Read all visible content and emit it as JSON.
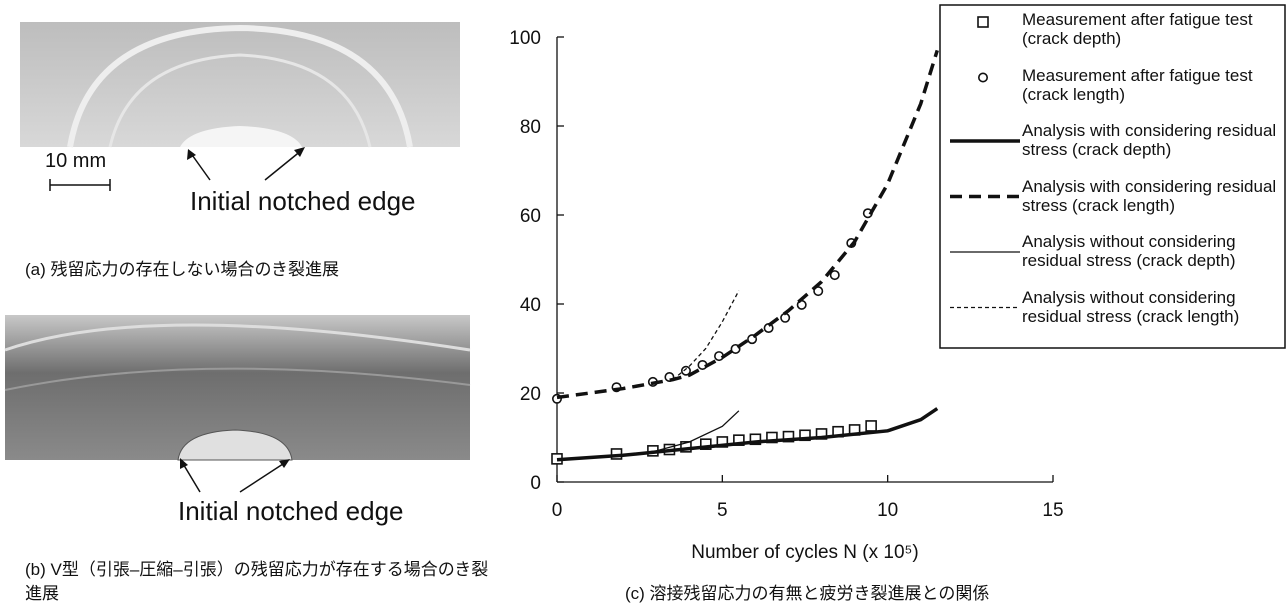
{
  "photos": [
    {
      "scale_label": "10 mm",
      "annotation": "Initial notched edge",
      "caption": "(a) 残留応力の存在しない場合のき裂進展"
    },
    {
      "annotation": "Initial notched edge",
      "caption": "(b) V型（引張–圧縮–引張）の残留応力が存在する場合のき裂進展"
    }
  ],
  "chart_data": {
    "type": "line",
    "caption": "(c) 溶接残留応力の有無と疲労き裂進展との関係",
    "xlabel": "Number of cycles N (x 10⁵)",
    "xlim": [
      0,
      15
    ],
    "xticks": [
      0,
      5,
      10,
      15
    ],
    "ylim": [
      0,
      100
    ],
    "yticks": [
      0,
      20,
      40,
      60,
      80,
      100
    ],
    "grid": false,
    "legend": "upper right",
    "series": [
      {
        "name": "Measurement after fatigue test (crack depth)",
        "color": "#111111",
        "marker": "square",
        "x": [
          0,
          1.8,
          2.9,
          3.4,
          3.9,
          4.5,
          5.0,
          5.5,
          6.0,
          6.5,
          7.0,
          7.5,
          8.0,
          8.5,
          9.0,
          9.5
        ],
        "values": [
          5.2,
          6.3,
          7.0,
          7.3,
          7.9,
          8.5,
          9.0,
          9.4,
          9.6,
          10.0,
          10.2,
          10.5,
          10.8,
          11.3,
          11.7,
          12.6
        ]
      },
      {
        "name": "Measurement after fatigue test (crack length)",
        "color": "#111111",
        "marker": "circle",
        "x": [
          0,
          1.8,
          2.9,
          3.4,
          3.9,
          4.4,
          4.9,
          5.4,
          5.9,
          6.4,
          6.9,
          7.4,
          7.9,
          8.4,
          8.9,
          9.4
        ],
        "values": [
          18.7,
          21.3,
          22.5,
          23.6,
          25.0,
          26.3,
          28.3,
          29.9,
          32.1,
          34.6,
          36.9,
          39.8,
          42.9,
          46.5,
          53.7,
          60.4
        ]
      },
      {
        "name": "Analysis with considering residual stress (crack depth)",
        "color": "#111111",
        "line_width": 3.5,
        "dash": "solid",
        "x": [
          0,
          2,
          4,
          6,
          8,
          10,
          11,
          11.5
        ],
        "values": [
          5,
          6,
          7.5,
          9,
          10,
          11.5,
          14,
          16.5
        ]
      },
      {
        "name": "Analysis with considering residual stress (crack length)",
        "color": "#111111",
        "line_width": 3.5,
        "dash": "dashed",
        "x": [
          0,
          2,
          3.5,
          4,
          5,
          6,
          7,
          8,
          9,
          10,
          11,
          11.5
        ],
        "values": [
          19,
          21,
          23,
          24,
          28,
          33,
          38.5,
          45,
          54,
          67,
          85,
          97
        ]
      },
      {
        "name": "Analysis without considering residual stress (crack depth)",
        "color": "#111111",
        "line_width": 1.3,
        "dash": "solid",
        "x": [
          0,
          2,
          3,
          4,
          5,
          5.5
        ],
        "values": [
          5,
          6,
          7,
          9,
          12.5,
          16
        ]
      },
      {
        "name": "Analysis without considering residual stress (crack length)",
        "color": "#111111",
        "line_width": 1.3,
        "dash": "dotted",
        "x": [
          3.5,
          4,
          4.5,
          5,
          5.5
        ],
        "values": [
          23,
          26,
          30,
          36,
          43
        ]
      }
    ]
  }
}
